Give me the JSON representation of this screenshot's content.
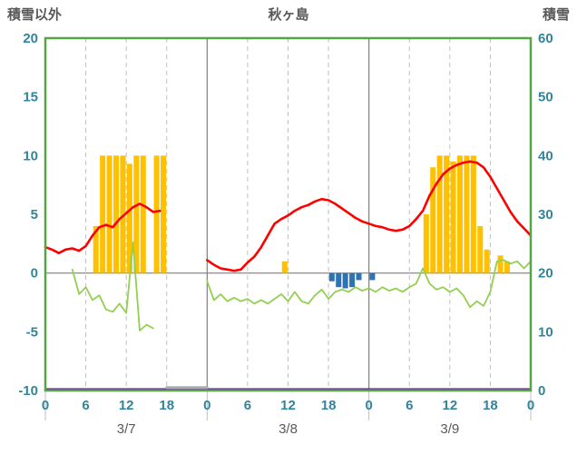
{
  "header": {
    "left_axis_title": "積雪以外",
    "chart_title": "秋ヶ島",
    "right_axis_title": "積雪"
  },
  "chart_data": {
    "type": "combo-bar-line",
    "title": "秋ヶ島",
    "left_axis": {
      "label": "積雪以外",
      "min": -10,
      "max": 20,
      "ticks": [
        20,
        15,
        10,
        5,
        0,
        -5,
        -10
      ]
    },
    "right_axis": {
      "label": "積雪",
      "min": 0,
      "max": 60,
      "ticks": [
        60,
        50,
        40,
        30,
        20,
        10,
        0
      ]
    },
    "x_axis": {
      "total_hours": 72,
      "tick_hours": [
        0,
        6,
        12,
        18,
        24,
        30,
        36,
        42,
        48,
        54,
        60,
        66,
        72
      ],
      "tick_labels": [
        "0",
        "6",
        "12",
        "18",
        "0",
        "6",
        "12",
        "18",
        "0",
        "6",
        "12",
        "18",
        "0"
      ],
      "minor_gridline_hours": [
        6,
        12,
        18,
        30,
        36,
        42,
        54,
        60,
        66
      ],
      "day_boundary_hours": [
        0,
        24,
        48,
        72
      ],
      "day_labels": [
        {
          "label": "3/7",
          "center_hour": 12
        },
        {
          "label": "3/8",
          "center_hour": 36
        },
        {
          "label": "3/9",
          "center_hour": 60
        }
      ]
    },
    "colors": {
      "border": "#56A446",
      "tick_text": "#31849B",
      "date_text": "#595959",
      "title_text": "#595959",
      "minor_grid": "#BFBFBF",
      "major_grid": "#7F7F7F",
      "zero_line": "#7F7F7F",
      "separator": "#BFBFBF",
      "orange_bar": "#FFC000",
      "blue_bar": "#2E74B5",
      "red_line": "#FF0000",
      "green_line": "#92D050",
      "purple_line": "#7030A0",
      "gray_segment": "#ABABAB"
    },
    "series": [
      {
        "name": "precipitation-bars",
        "type": "bar",
        "axis": "left",
        "color": "#FFC000",
        "points": [
          [
            7,
            4
          ],
          [
            8,
            10
          ],
          [
            9,
            10
          ],
          [
            10,
            10
          ],
          [
            11,
            10
          ],
          [
            12,
            9.3
          ],
          [
            13,
            10
          ],
          [
            14,
            10
          ],
          [
            16,
            10
          ],
          [
            17,
            10
          ],
          [
            35,
            1
          ],
          [
            56,
            5
          ],
          [
            57,
            9
          ],
          [
            58,
            10
          ],
          [
            59,
            10
          ],
          [
            60,
            9.5
          ],
          [
            61,
            10
          ],
          [
            62,
            10
          ],
          [
            63,
            10
          ],
          [
            64,
            4
          ],
          [
            65,
            2
          ],
          [
            67,
            1.5
          ],
          [
            68,
            1
          ]
        ]
      },
      {
        "name": "negative-blue-bars",
        "type": "bar",
        "axis": "left",
        "color": "#2E74B5",
        "points": [
          [
            42,
            -0.7
          ],
          [
            43,
            -1.2
          ],
          [
            44,
            -1.3
          ],
          [
            45,
            -1.2
          ],
          [
            46,
            -0.6
          ],
          [
            48,
            -0.6
          ]
        ]
      },
      {
        "name": "snow-depth-line",
        "type": "line",
        "axis": "right",
        "color": "#7030A0",
        "width": 2.5,
        "segments": [
          [
            [
              0,
              0
            ],
            [
              72,
              0
            ]
          ]
        ]
      },
      {
        "name": "bottom-gray-segment",
        "type": "line",
        "axis": "left",
        "color": "#ABABAB",
        "width": 3,
        "segments": [
          [
            [
              18,
              -9.75
            ],
            [
              24,
              -9.75
            ]
          ]
        ]
      },
      {
        "name": "green-line",
        "type": "line",
        "axis": "left",
        "color": "#92D050",
        "width": 1.8,
        "segments": [
          [
            [
              4,
              0.3
            ],
            [
              5,
              -1.8
            ],
            [
              6,
              -1.2
            ],
            [
              7,
              -2.3
            ],
            [
              8,
              -1.9
            ],
            [
              9,
              -3.1
            ],
            [
              10,
              -3.3
            ],
            [
              11,
              -2.6
            ],
            [
              12,
              -3.4
            ],
            [
              13,
              2.6
            ],
            [
              14,
              -4.9
            ],
            [
              15,
              -4.4
            ],
            [
              16,
              -4.7
            ]
          ],
          [
            [
              24,
              -0.7
            ],
            [
              25,
              -2.3
            ],
            [
              26,
              -1.8
            ],
            [
              27,
              -2.4
            ],
            [
              28,
              -2.1
            ],
            [
              29,
              -2.4
            ],
            [
              30,
              -2.2
            ],
            [
              31,
              -2.6
            ],
            [
              32,
              -2.3
            ],
            [
              33,
              -2.6
            ],
            [
              34,
              -2.2
            ],
            [
              35,
              -1.8
            ],
            [
              36,
              -2.4
            ],
            [
              37,
              -1.6
            ],
            [
              38,
              -2.4
            ],
            [
              39,
              -2.6
            ],
            [
              40,
              -1.9
            ],
            [
              41,
              -1.4
            ],
            [
              42,
              -2.2
            ],
            [
              43,
              -1.6
            ],
            [
              44,
              -1.4
            ],
            [
              45,
              -1.6
            ],
            [
              46,
              -1.2
            ],
            [
              47,
              -1.5
            ],
            [
              48,
              -1.3
            ],
            [
              49,
              -1.6
            ],
            [
              50,
              -1.2
            ],
            [
              51,
              -1.5
            ],
            [
              52,
              -1.3
            ],
            [
              53,
              -1.6
            ],
            [
              54,
              -1.2
            ],
            [
              55,
              -0.9
            ],
            [
              56,
              0.4
            ],
            [
              57,
              -0.9
            ],
            [
              58,
              -1.4
            ],
            [
              59,
              -1.2
            ],
            [
              60,
              -1.6
            ],
            [
              61,
              -1.3
            ],
            [
              62,
              -1.9
            ],
            [
              63,
              -2.9
            ],
            [
              64,
              -2.4
            ],
            [
              65,
              -2.8
            ],
            [
              66,
              -1.6
            ],
            [
              67,
              1.0
            ],
            [
              68,
              1.1
            ],
            [
              69,
              0.8
            ],
            [
              70,
              1.0
            ],
            [
              71,
              0.4
            ],
            [
              72,
              1.0
            ]
          ]
        ]
      },
      {
        "name": "temperature-line",
        "type": "line",
        "axis": "left",
        "color": "#FF0000",
        "width": 2.6,
        "segments": [
          [
            [
              0,
              2.2
            ],
            [
              1,
              2.0
            ],
            [
              2,
              1.7
            ],
            [
              3,
              2.0
            ],
            [
              4,
              2.1
            ],
            [
              5,
              1.9
            ],
            [
              6,
              2.3
            ],
            [
              7,
              3.2
            ],
            [
              8,
              3.9
            ],
            [
              9,
              4.1
            ],
            [
              10,
              3.9
            ],
            [
              11,
              4.6
            ],
            [
              12,
              5.1
            ],
            [
              13,
              5.6
            ],
            [
              14,
              5.9
            ],
            [
              15,
              5.6
            ],
            [
              16,
              5.2
            ],
            [
              17,
              5.3
            ]
          ],
          [
            [
              24,
              1.1
            ],
            [
              25,
              0.7
            ],
            [
              26,
              0.4
            ],
            [
              27,
              0.3
            ],
            [
              28,
              0.2
            ],
            [
              29,
              0.3
            ],
            [
              30,
              0.9
            ],
            [
              31,
              1.4
            ],
            [
              32,
              2.2
            ],
            [
              33,
              3.2
            ],
            [
              34,
              4.2
            ],
            [
              35,
              4.6
            ],
            [
              36,
              4.9
            ],
            [
              37,
              5.3
            ],
            [
              38,
              5.6
            ],
            [
              39,
              5.8
            ],
            [
              40,
              6.1
            ],
            [
              41,
              6.3
            ],
            [
              42,
              6.2
            ],
            [
              43,
              5.9
            ],
            [
              44,
              5.5
            ],
            [
              45,
              5.1
            ],
            [
              46,
              4.7
            ],
            [
              47,
              4.4
            ],
            [
              48,
              4.2
            ],
            [
              49,
              4.0
            ],
            [
              50,
              3.9
            ],
            [
              51,
              3.7
            ],
            [
              52,
              3.6
            ],
            [
              53,
              3.7
            ],
            [
              54,
              4.0
            ],
            [
              55,
              4.6
            ],
            [
              56,
              5.3
            ],
            [
              57,
              6.6
            ],
            [
              58,
              7.6
            ],
            [
              59,
              8.4
            ],
            [
              60,
              8.9
            ],
            [
              61,
              9.2
            ],
            [
              62,
              9.4
            ],
            [
              63,
              9.5
            ],
            [
              64,
              9.4
            ],
            [
              65,
              9.0
            ],
            [
              66,
              8.2
            ],
            [
              67,
              7.2
            ],
            [
              68,
              6.2
            ],
            [
              69,
              5.2
            ],
            [
              70,
              4.4
            ],
            [
              71,
              3.8
            ],
            [
              72,
              3.2
            ]
          ]
        ]
      }
    ]
  }
}
